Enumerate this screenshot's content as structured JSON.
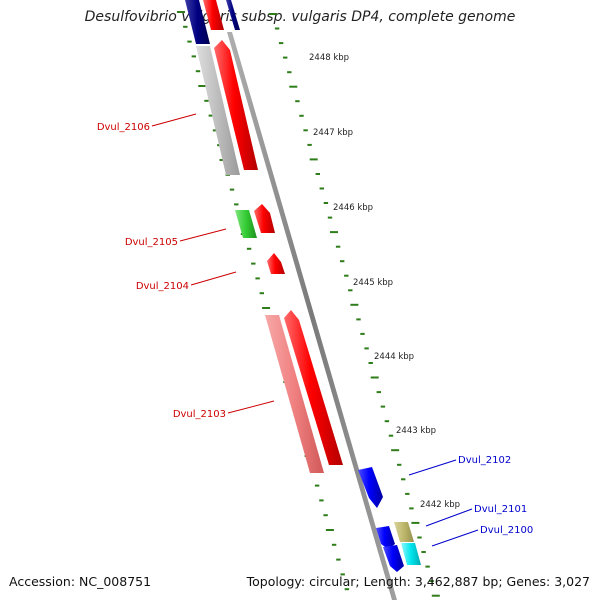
{
  "title": "Desulfovibrio vulgaris subsp. vulgaris DP4, complete genome",
  "footer": {
    "accession": "Accession: NC_008751",
    "summary": "Topology: circular; Length: 3,462,887 bp; Genes: 3,027"
  },
  "ticks": [
    {
      "label": "2448 kbp"
    },
    {
      "label": "2447 kbp"
    },
    {
      "label": "2446 kbp"
    },
    {
      "label": "2445 kbp"
    },
    {
      "label": "2444 kbp"
    },
    {
      "label": "2443 kbp"
    },
    {
      "label": "2442 kbp"
    }
  ],
  "gene_labels": [
    {
      "label": "Dvul_2106",
      "color": "#cc0000"
    },
    {
      "label": "Dvul_2105",
      "color": "#cc0000"
    },
    {
      "label": "Dvul_2104",
      "color": "#cc0000"
    },
    {
      "label": "Dvul_2103",
      "color": "#cc0000"
    },
    {
      "label": "Dvul_2102",
      "color": "#0000cc"
    },
    {
      "label": "Dvul_2101",
      "color": "#0000cc"
    },
    {
      "label": "Dvul_2100",
      "color": "#0000cc"
    }
  ],
  "colors": {
    "backbone": "#8c8c8c",
    "tick": "#2e7d1a",
    "forward_cds": "#ff0000",
    "reverse_cds": "#0000ff",
    "grey_feature": "#b8b8b8",
    "pink_feature": "#f08080",
    "green_feature": "#33cc33",
    "tan_feature": "#bdb76b",
    "cyan_feature": "#00e5ee",
    "navy_feature": "#000080"
  }
}
